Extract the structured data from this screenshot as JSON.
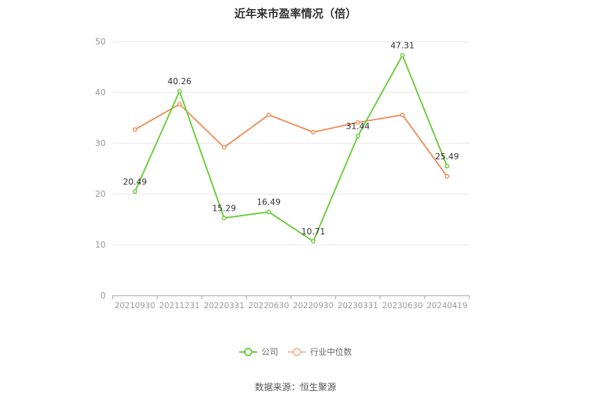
{
  "title": "近年来市盈率情况（倍）",
  "source": "数据来源：恒生聚源",
  "colors": {
    "company": "#66cc33",
    "industry": "#f08c5a",
    "grid": "#e6e6ee",
    "axis": "#999999",
    "tick_text": "#999999",
    "label_text": "#333333"
  },
  "chart_data": {
    "type": "line",
    "categories": [
      "20210930",
      "20211231",
      "20220331",
      "20220630",
      "20220930",
      "20230331",
      "20230630",
      "20240419"
    ],
    "ylim": [
      0,
      50
    ],
    "yticks": [
      0,
      10,
      20,
      30,
      40,
      50
    ],
    "grid": true,
    "legend_position": "bottom",
    "series": [
      {
        "name": "公司",
        "values": [
          20.49,
          40.26,
          15.29,
          16.49,
          10.71,
          31.44,
          47.31,
          25.49
        ],
        "labels": [
          "20.49",
          "40.26",
          "15.29",
          "16.49",
          "10.71",
          "31.44",
          "47.31",
          "25.49"
        ],
        "show_labels": true
      },
      {
        "name": "行业中位数",
        "values": [
          32.7,
          37.7,
          29.2,
          35.6,
          32.2,
          34.1,
          35.6,
          23.5
        ],
        "show_labels": false
      }
    ]
  }
}
